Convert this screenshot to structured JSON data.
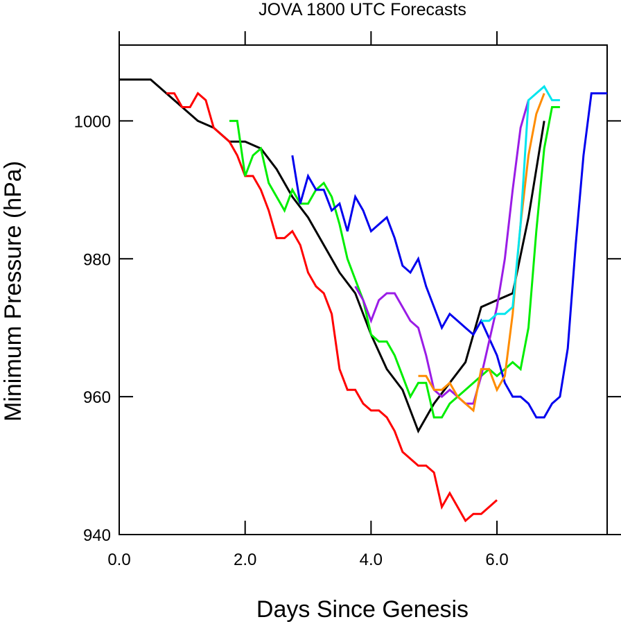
{
  "chart_data": {
    "type": "line",
    "title": "JOVA 1800 UTC Forecasts",
    "xlabel": "Days Since Genesis",
    "ylabel": "Minimum Pressure (hPa)",
    "xlim": [
      0,
      7.75
    ],
    "ylim": [
      940,
      1011
    ],
    "x_ticks": [
      0,
      2,
      4,
      6
    ],
    "x_tick_labels": [
      "0.0",
      "2.0",
      "4.0",
      "6.0"
    ],
    "y_ticks": [
      940,
      960,
      980,
      1000
    ],
    "y_tick_labels": [
      "940",
      "960",
      "980",
      "1000"
    ],
    "grid": false,
    "legend": "none",
    "series": [
      {
        "color": "#000000",
        "points": [
          [
            0.0,
            1006
          ],
          [
            0.5,
            1006
          ],
          [
            0.75,
            1004
          ],
          [
            1.0,
            1002
          ],
          [
            1.25,
            1000
          ],
          [
            1.5,
            999
          ],
          [
            1.75,
            997
          ],
          [
            2.0,
            997
          ],
          [
            2.25,
            996
          ],
          [
            2.5,
            993
          ],
          [
            2.75,
            989
          ],
          [
            3.0,
            986
          ],
          [
            3.25,
            982
          ],
          [
            3.5,
            978
          ],
          [
            3.75,
            975
          ],
          [
            4.0,
            969
          ],
          [
            4.25,
            964
          ],
          [
            4.5,
            961
          ],
          [
            4.75,
            955
          ],
          [
            5.0,
            959
          ],
          [
            5.25,
            962
          ],
          [
            5.5,
            965
          ],
          [
            5.75,
            973
          ],
          [
            6.0,
            974
          ],
          [
            6.25,
            975
          ],
          [
            6.5,
            986
          ],
          [
            6.75,
            1000
          ]
        ]
      },
      {
        "color": "#ff0000",
        "points": [
          [
            0.75,
            1004
          ],
          [
            0.875,
            1004
          ],
          [
            1.0,
            1002
          ],
          [
            1.125,
            1002
          ],
          [
            1.25,
            1004
          ],
          [
            1.375,
            1003
          ],
          [
            1.5,
            999
          ],
          [
            1.625,
            998
          ],
          [
            1.75,
            997
          ],
          [
            1.875,
            995
          ],
          [
            2.0,
            992
          ],
          [
            2.125,
            992
          ],
          [
            2.25,
            990
          ],
          [
            2.375,
            987
          ],
          [
            2.5,
            983
          ],
          [
            2.625,
            983
          ],
          [
            2.75,
            984
          ],
          [
            2.875,
            982
          ],
          [
            3.0,
            978
          ],
          [
            3.125,
            976
          ],
          [
            3.25,
            975
          ],
          [
            3.375,
            972
          ],
          [
            3.5,
            964
          ],
          [
            3.625,
            961
          ],
          [
            3.75,
            961
          ],
          [
            3.875,
            959
          ],
          [
            4.0,
            958
          ],
          [
            4.125,
            958
          ],
          [
            4.25,
            957
          ],
          [
            4.375,
            955
          ],
          [
            4.5,
            952
          ],
          [
            4.625,
            951
          ],
          [
            4.75,
            950
          ],
          [
            4.875,
            950
          ],
          [
            5.0,
            949
          ],
          [
            5.125,
            944
          ],
          [
            5.25,
            946
          ],
          [
            5.375,
            944
          ],
          [
            5.5,
            942
          ],
          [
            5.625,
            943
          ],
          [
            5.75,
            943
          ],
          [
            5.875,
            944
          ],
          [
            6.0,
            945
          ]
        ]
      },
      {
        "color": "#00ee00",
        "points": [
          [
            1.75,
            1000
          ],
          [
            1.875,
            1000
          ],
          [
            2.0,
            992
          ],
          [
            2.125,
            995
          ],
          [
            2.25,
            996
          ],
          [
            2.375,
            991
          ],
          [
            2.5,
            989
          ],
          [
            2.625,
            987
          ],
          [
            2.75,
            990
          ],
          [
            2.875,
            988
          ],
          [
            3.0,
            988
          ],
          [
            3.125,
            990
          ],
          [
            3.25,
            991
          ],
          [
            3.375,
            989
          ],
          [
            3.5,
            985
          ],
          [
            3.625,
            980
          ],
          [
            3.75,
            977
          ],
          [
            3.875,
            974
          ],
          [
            4.0,
            969
          ],
          [
            4.125,
            968
          ],
          [
            4.25,
            968
          ],
          [
            4.375,
            966
          ],
          [
            4.5,
            963
          ],
          [
            4.625,
            960
          ],
          [
            4.75,
            962
          ],
          [
            4.875,
            962
          ],
          [
            5.0,
            957
          ],
          [
            5.125,
            957
          ],
          [
            5.25,
            959
          ],
          [
            5.5,
            961
          ],
          [
            5.75,
            963
          ],
          [
            5.875,
            964
          ],
          [
            6.0,
            963
          ],
          [
            6.125,
            964
          ],
          [
            6.25,
            965
          ],
          [
            6.375,
            964
          ],
          [
            6.5,
            970
          ],
          [
            6.625,
            984
          ],
          [
            6.75,
            996
          ],
          [
            6.875,
            1002
          ],
          [
            7.0,
            1002
          ]
        ]
      },
      {
        "color": "#0000ee",
        "points": [
          [
            2.75,
            995
          ],
          [
            2.875,
            988
          ],
          [
            3.0,
            992
          ],
          [
            3.125,
            990
          ],
          [
            3.25,
            990
          ],
          [
            3.375,
            987
          ],
          [
            3.5,
            988
          ],
          [
            3.625,
            984
          ],
          [
            3.75,
            989
          ],
          [
            3.875,
            987
          ],
          [
            4.0,
            984
          ],
          [
            4.125,
            985
          ],
          [
            4.25,
            986
          ],
          [
            4.375,
            983
          ],
          [
            4.5,
            979
          ],
          [
            4.625,
            978
          ],
          [
            4.75,
            980
          ],
          [
            4.875,
            976
          ],
          [
            5.0,
            973
          ],
          [
            5.125,
            970
          ],
          [
            5.25,
            972
          ],
          [
            5.375,
            971
          ],
          [
            5.5,
            970
          ],
          [
            5.625,
            969
          ],
          [
            5.75,
            971
          ],
          [
            6.0,
            966
          ],
          [
            6.125,
            962
          ],
          [
            6.25,
            960
          ],
          [
            6.375,
            960
          ],
          [
            6.5,
            959
          ],
          [
            6.625,
            957
          ],
          [
            6.75,
            957
          ],
          [
            6.875,
            959
          ],
          [
            7.0,
            960
          ],
          [
            7.125,
            967
          ],
          [
            7.25,
            982
          ],
          [
            7.375,
            995
          ],
          [
            7.5,
            1004
          ],
          [
            7.75,
            1004
          ]
        ]
      },
      {
        "color": "#9a1ce6",
        "points": [
          [
            3.75,
            976
          ],
          [
            3.875,
            974
          ],
          [
            4.0,
            971
          ],
          [
            4.125,
            974
          ],
          [
            4.25,
            975
          ],
          [
            4.375,
            975
          ],
          [
            4.5,
            973
          ],
          [
            4.625,
            971
          ],
          [
            4.75,
            970
          ],
          [
            4.875,
            966
          ],
          [
            5.0,
            961
          ],
          [
            5.125,
            960
          ],
          [
            5.25,
            961
          ],
          [
            5.375,
            960
          ],
          [
            5.5,
            959
          ],
          [
            5.625,
            959
          ],
          [
            5.75,
            963
          ],
          [
            6.0,
            973
          ],
          [
            6.125,
            980
          ],
          [
            6.25,
            990
          ],
          [
            6.375,
            999
          ],
          [
            6.5,
            1003
          ]
        ]
      },
      {
        "color": "#ff8c00",
        "points": [
          [
            4.75,
            963
          ],
          [
            4.875,
            963
          ],
          [
            5.0,
            961
          ],
          [
            5.125,
            961
          ],
          [
            5.25,
            962
          ],
          [
            5.375,
            960
          ],
          [
            5.5,
            959
          ],
          [
            5.625,
            958
          ],
          [
            5.75,
            964
          ],
          [
            5.875,
            964
          ],
          [
            6.0,
            961
          ],
          [
            6.125,
            963
          ],
          [
            6.25,
            972
          ],
          [
            6.375,
            985
          ],
          [
            6.5,
            995
          ],
          [
            6.625,
            1001
          ],
          [
            6.75,
            1004
          ]
        ]
      },
      {
        "color": "#00e5ee",
        "points": [
          [
            5.75,
            971
          ],
          [
            5.875,
            971
          ],
          [
            6.0,
            972
          ],
          [
            6.125,
            972
          ],
          [
            6.25,
            973
          ],
          [
            6.375,
            985
          ],
          [
            6.5,
            1003
          ],
          [
            6.625,
            1004
          ],
          [
            6.75,
            1005
          ],
          [
            6.875,
            1003
          ],
          [
            7.0,
            1003
          ]
        ]
      }
    ]
  }
}
